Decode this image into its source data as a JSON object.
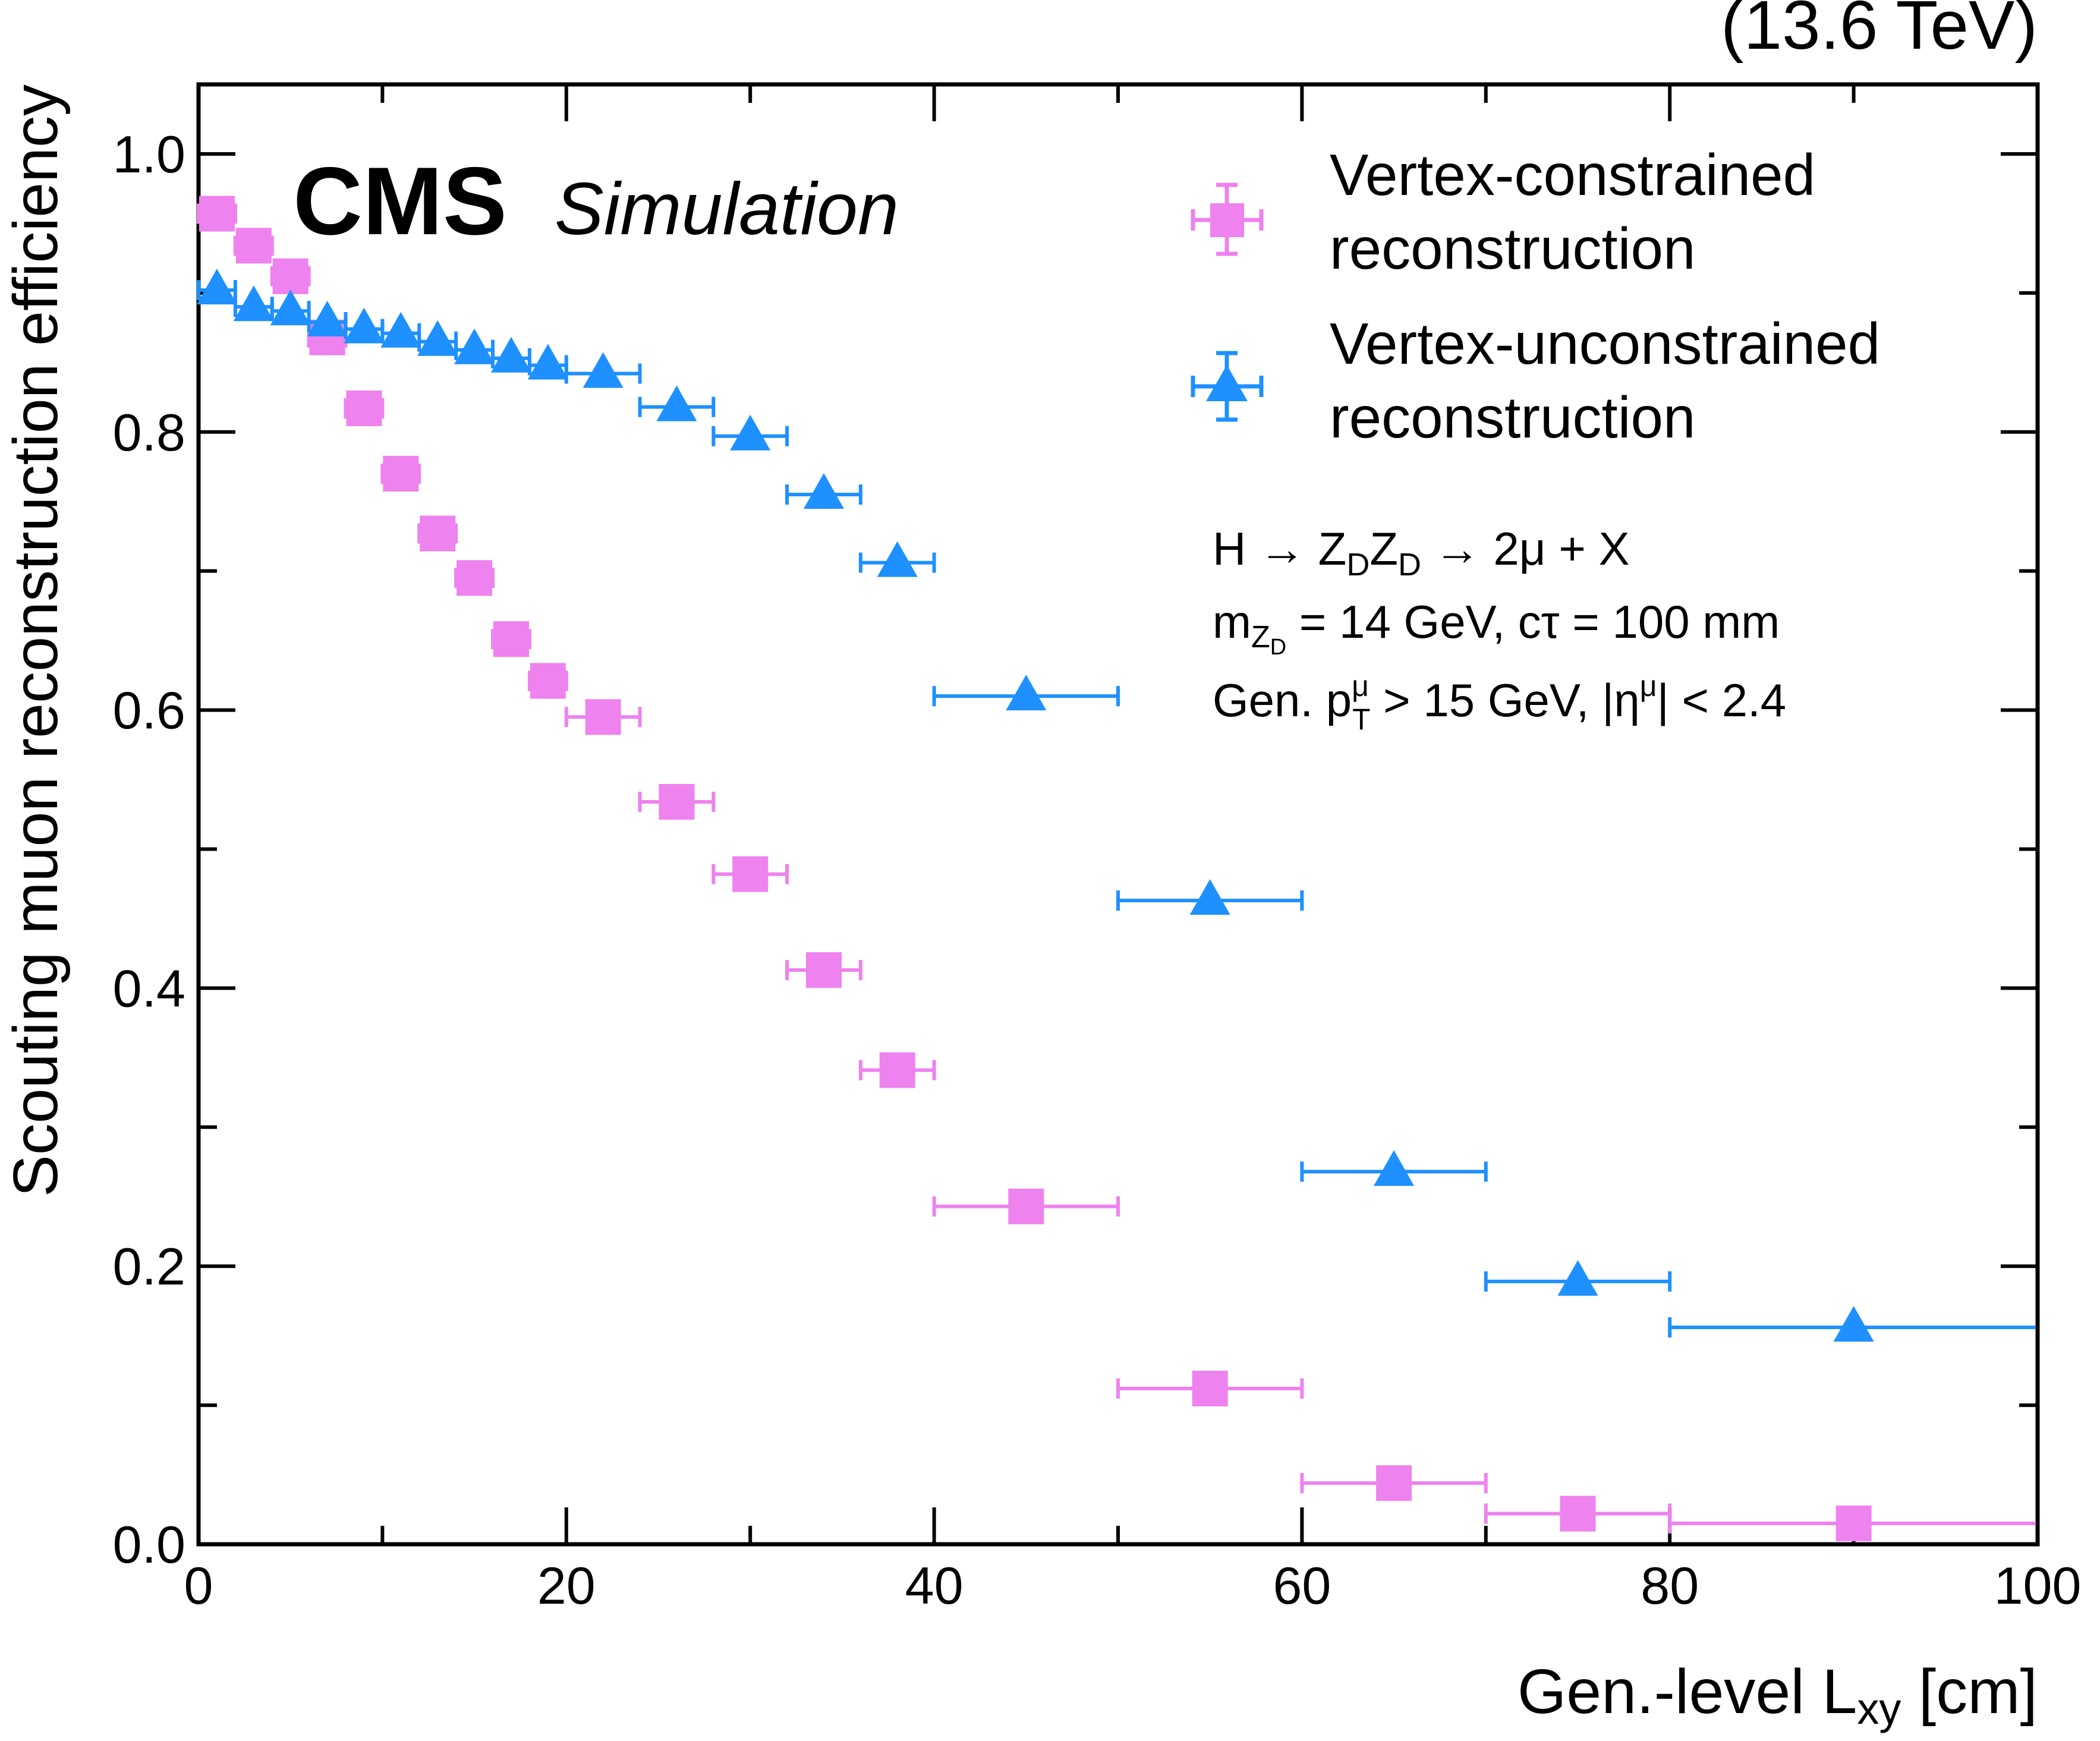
{
  "header": {
    "energy_label": "(13.6 TeV)",
    "experiment": "CMS",
    "status": "Simulation"
  },
  "legend": [
    {
      "line1": "Vertex-constrained",
      "line2": "reconstruction"
    },
    {
      "line1": "Vertex-unconstrained",
      "line2": "reconstruction"
    }
  ],
  "annotations": {
    "line1": {
      "a": "H → Z",
      "a_sub": "D",
      "b": "Z",
      "b_sub": "D",
      "c": " → 2μ + X"
    },
    "line2": {
      "a": "m",
      "a_sub": "Z",
      "a_subsub": "D",
      "b": " = 14 GeV, cτ = 100 mm"
    },
    "line3": {
      "a": "Gen. p",
      "a_sup": "μ",
      "a_sub": "T",
      "b": " > 15 GeV, |η",
      "b_sup": "μ",
      "c": "| < 2.4"
    }
  },
  "colors": {
    "constrained": "#ee82ee",
    "unconstrained": "#1e90ff",
    "axis": "#000000"
  },
  "chart_data": {
    "type": "scatter",
    "xlabel_main": "Gen.-level L",
    "xlabel_sub": "xy",
    "xlabel_unit": " [cm]",
    "ylabel": "Scouting muon reconstruction efficiency",
    "xlim": [
      0,
      100
    ],
    "ylim": [
      0,
      1.05
    ],
    "x_major_ticks": [
      0,
      20,
      40,
      60,
      80,
      100
    ],
    "x_tick_labels": [
      "0",
      "20",
      "40",
      "60",
      "80",
      "100"
    ],
    "x_minor_step": 10,
    "y_major_ticks": [
      0,
      0.2,
      0.4,
      0.6,
      0.8,
      1.0
    ],
    "y_tick_labels": [
      "0.0",
      "0.2",
      "0.4",
      "0.6",
      "0.8",
      "1.0"
    ],
    "y_minor_step": 0.1,
    "series": [
      {
        "name": "Vertex-constrained reconstruction",
        "marker": "square",
        "points": [
          {
            "x": 1,
            "xlo": 0,
            "xhi": 2,
            "y": 0.957
          },
          {
            "x": 3,
            "xlo": 2,
            "xhi": 4,
            "y": 0.934
          },
          {
            "x": 5,
            "xlo": 4,
            "xhi": 6,
            "y": 0.912
          },
          {
            "x": 7,
            "xlo": 6,
            "xhi": 8,
            "y": 0.868
          },
          {
            "x": 9,
            "xlo": 8,
            "xhi": 10,
            "y": 0.817
          },
          {
            "x": 11,
            "xlo": 10,
            "xhi": 12,
            "y": 0.77
          },
          {
            "x": 13,
            "xlo": 12,
            "xhi": 14,
            "y": 0.727
          },
          {
            "x": 15,
            "xlo": 14,
            "xhi": 16,
            "y": 0.695
          },
          {
            "x": 17,
            "xlo": 16,
            "xhi": 18,
            "y": 0.651
          },
          {
            "x": 19,
            "xlo": 18,
            "xhi": 20,
            "y": 0.621
          },
          {
            "x": 22,
            "xlo": 20,
            "xhi": 24,
            "y": 0.595
          },
          {
            "x": 26,
            "xlo": 24,
            "xhi": 28,
            "y": 0.534
          },
          {
            "x": 30,
            "xlo": 28,
            "xhi": 32,
            "y": 0.482
          },
          {
            "x": 34,
            "xlo": 32,
            "xhi": 36,
            "y": 0.413
          },
          {
            "x": 38,
            "xlo": 36,
            "xhi": 40,
            "y": 0.341
          },
          {
            "x": 45,
            "xlo": 40,
            "xhi": 50,
            "y": 0.243
          },
          {
            "x": 55,
            "xlo": 50,
            "xhi": 60,
            "y": 0.112
          },
          {
            "x": 65,
            "xlo": 60,
            "xhi": 70,
            "y": 0.044
          },
          {
            "x": 75,
            "xlo": 70,
            "xhi": 80,
            "y": 0.022
          },
          {
            "x": 90,
            "xlo": 80,
            "xhi": 100,
            "y": 0.015
          }
        ]
      },
      {
        "name": "Vertex-unconstrained reconstruction",
        "marker": "triangle",
        "points": [
          {
            "x": 1,
            "xlo": 0,
            "xhi": 2,
            "y": 0.902
          },
          {
            "x": 3,
            "xlo": 2,
            "xhi": 4,
            "y": 0.89
          },
          {
            "x": 5,
            "xlo": 4,
            "xhi": 6,
            "y": 0.887
          },
          {
            "x": 7,
            "xlo": 6,
            "xhi": 8,
            "y": 0.879
          },
          {
            "x": 9,
            "xlo": 8,
            "xhi": 10,
            "y": 0.874
          },
          {
            "x": 11,
            "xlo": 10,
            "xhi": 12,
            "y": 0.871
          },
          {
            "x": 13,
            "xlo": 12,
            "xhi": 14,
            "y": 0.865
          },
          {
            "x": 15,
            "xlo": 14,
            "xhi": 16,
            "y": 0.859
          },
          {
            "x": 17,
            "xlo": 16,
            "xhi": 18,
            "y": 0.853
          },
          {
            "x": 19,
            "xlo": 18,
            "xhi": 20,
            "y": 0.848
          },
          {
            "x": 22,
            "xlo": 20,
            "xhi": 24,
            "y": 0.842
          },
          {
            "x": 26,
            "xlo": 24,
            "xhi": 28,
            "y": 0.818
          },
          {
            "x": 30,
            "xlo": 28,
            "xhi": 32,
            "y": 0.797
          },
          {
            "x": 34,
            "xlo": 32,
            "xhi": 36,
            "y": 0.755
          },
          {
            "x": 38,
            "xlo": 36,
            "xhi": 40,
            "y": 0.706
          },
          {
            "x": 45,
            "xlo": 40,
            "xhi": 50,
            "y": 0.61
          },
          {
            "x": 55,
            "xlo": 50,
            "xhi": 60,
            "y": 0.463
          },
          {
            "x": 65,
            "xlo": 60,
            "xhi": 70,
            "y": 0.268
          },
          {
            "x": 75,
            "xlo": 70,
            "xhi": 80,
            "y": 0.189
          },
          {
            "x": 90,
            "xlo": 80,
            "xhi": 100,
            "y": 0.156
          }
        ]
      }
    ]
  }
}
